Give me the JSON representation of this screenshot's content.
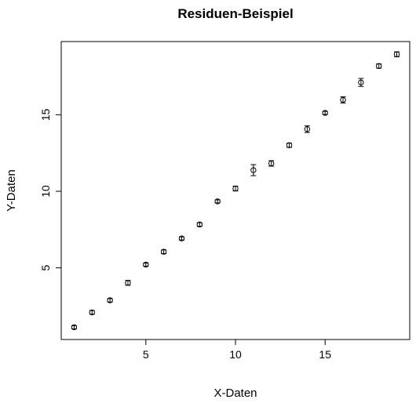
{
  "chart_data": {
    "type": "scatter",
    "title": "Residuen-Beispiel",
    "xlabel": "X-Daten",
    "ylabel": "Y-Daten",
    "xlim": [
      0.28,
      19.72
    ],
    "ylim": [
      0.32,
      19.78
    ],
    "x_ticks": [
      5,
      10,
      15
    ],
    "y_ticks": [
      5,
      10,
      15
    ],
    "grid": false,
    "legend": "none",
    "series": [
      {
        "marker": "open-circle",
        "color": "#000000",
        "x": [
          1,
          2,
          3,
          4,
          5,
          6,
          7,
          8,
          9,
          10,
          11,
          12,
          13,
          14,
          15,
          16,
          17,
          18,
          19
        ],
        "y": [
          1.12,
          2.09,
          2.88,
          4.02,
          5.21,
          6.05,
          6.92,
          7.83,
          9.34,
          10.18,
          11.38,
          11.82,
          13.01,
          14.06,
          15.12,
          15.97,
          17.11,
          18.18,
          18.95
        ],
        "error": [
          0.1,
          0.12,
          0.11,
          0.16,
          0.1,
          0.12,
          0.1,
          0.12,
          0.1,
          0.16,
          0.36,
          0.18,
          0.14,
          0.22,
          0.1,
          0.2,
          0.26,
          0.14,
          0.16
        ]
      }
    ]
  }
}
